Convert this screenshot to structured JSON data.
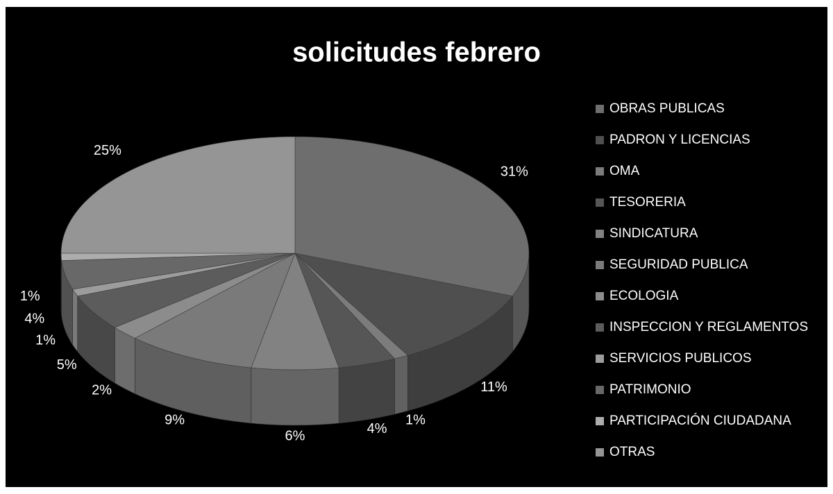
{
  "chart_data": {
    "type": "pie",
    "title": "solicitudes febrero",
    "categories": [
      "OBRAS PUBLICAS",
      "PADRON Y LICENCIAS",
      "OMA",
      "TESORERIA",
      "SINDICATURA",
      "SEGURIDAD PUBLICA",
      "ECOLOGIA",
      "INSPECCION Y REGLAMENTOS",
      "SERVICIOS PUBLICOS",
      "PATRIMONIO",
      "PARTICIPACIÓN CIUDADANA",
      "OTRAS"
    ],
    "values": [
      31,
      11,
      1,
      4,
      6,
      9,
      2,
      5,
      1,
      4,
      1,
      25
    ],
    "value_labels": [
      "31%",
      "11%",
      "1%",
      "4%",
      "6%",
      "9%",
      "2%",
      "5%",
      "1%",
      "4%",
      "1%",
      "25%"
    ],
    "colors": [
      "#6e6e6e",
      "#4f4f4f",
      "#7c7c7c",
      "#565656",
      "#828282",
      "#7a7a7a",
      "#8c8c8c",
      "#5c5c5c",
      "#9c9c9c",
      "#686868",
      "#adadad",
      "#959595"
    ],
    "legend": "right"
  }
}
